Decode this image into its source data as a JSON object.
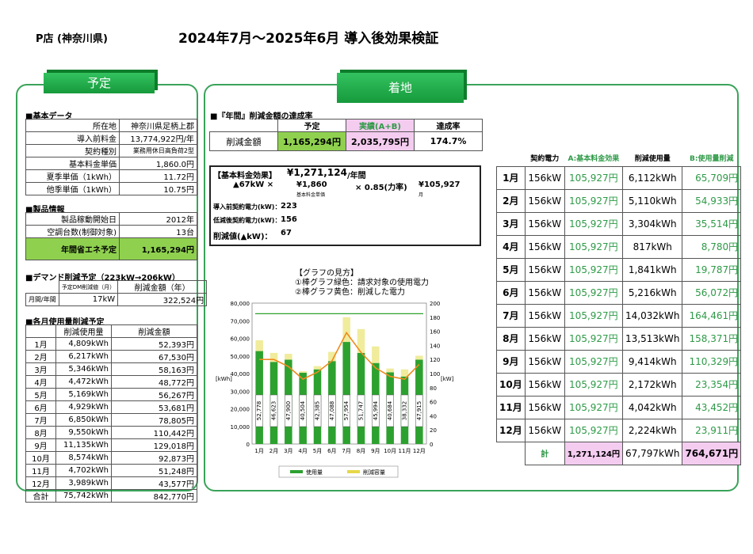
{
  "header": {
    "store": "P店 (神奈川県)",
    "title": "2024年7月～2025年6月 導入後効果検証"
  },
  "tabs": {
    "left": "予定",
    "right": "着地"
  },
  "basic": {
    "section": "■基本データ",
    "rows": [
      {
        "label": "所在地",
        "value": "神奈川県足柄上郡"
      },
      {
        "label": "導入前料金",
        "value": "13,774,922円/年"
      },
      {
        "label": "契約種別",
        "value": "業務用休日高負荷2型"
      },
      {
        "label": "基本料金単価",
        "value": "1,860.0円"
      },
      {
        "label": "夏季単価（1kWh）",
        "value": "11.72円"
      },
      {
        "label": "他季単価（1kWh）",
        "value": "10.75円"
      }
    ]
  },
  "product": {
    "section": "■製品情報",
    "rows": [
      {
        "label": "製品稼動開始日",
        "value": "2012年"
      },
      {
        "label": "空調台数(制御対象)",
        "value": "13台"
      }
    ],
    "total_label": "年間省エネ予定",
    "total_value": "1,165,294円"
  },
  "demand": {
    "section": "■デマンド削減予定（223kW→206kW）",
    "head1": "予定DM削減値（月）",
    "head2": "削減金額（年）",
    "row_label": "月間/年間",
    "kw": "17kW",
    "amount": "322,524円"
  },
  "monthly_plan": {
    "section": "■各月使用量削減予定",
    "head_usage": "削減使用量",
    "head_amount": "削減金額",
    "rows": [
      {
        "m": "1月",
        "u": "4,809kWh",
        "a": "52,393円"
      },
      {
        "m": "2月",
        "u": "6,217kWh",
        "a": "67,530円"
      },
      {
        "m": "3月",
        "u": "5,346kWh",
        "a": "58,163円"
      },
      {
        "m": "4月",
        "u": "4,472kWh",
        "a": "48,772円"
      },
      {
        "m": "5月",
        "u": "5,169kWh",
        "a": "56,267円"
      },
      {
        "m": "6月",
        "u": "4,929kWh",
        "a": "53,681円"
      },
      {
        "m": "7月",
        "u": "6,850kWh",
        "a": "78,805円"
      },
      {
        "m": "8月",
        "u": "9,550kWh",
        "a": "110,442円"
      },
      {
        "m": "9月",
        "u": "11,135kWh",
        "a": "129,018円"
      },
      {
        "m": "10月",
        "u": "8,574kWh",
        "a": "92,873円"
      },
      {
        "m": "11月",
        "u": "4,702kWh",
        "a": "51,248円"
      },
      {
        "m": "12月",
        "u": "3,989kWh",
        "a": "43,577円"
      }
    ],
    "total_label": "合計",
    "total_u": "75,742kWh",
    "total_a": "842,770円"
  },
  "achievement": {
    "section": "■『年間』削減金額の達成率",
    "head_plan": "予定",
    "head_actual": "実績(A+B)",
    "head_rate": "達成率",
    "row_label": "削減金額",
    "plan": "1,165,294円",
    "actual": "2,035,795円",
    "rate": "174.7%"
  },
  "effect": {
    "title": "【基本料金効果】",
    "total": "¥1,271,124",
    "per_year": "/年間",
    "calc_kw": "▲67kW ×",
    "calc_unit": "¥1,860",
    "calc_unit_sub": "基本料金単価",
    "calc_pf": "× 0.85(力率)",
    "calc_month": "¥105,927",
    "calc_month_sub": "月",
    "before_label": "導入前契約電力(kW)：",
    "before": "223",
    "after_label": "低減後契約電力(kW)：",
    "after": "156",
    "reduce_label": "削減値(▲kW)：",
    "reduce": "67"
  },
  "legend_note": {
    "title": "【グラフの見方】",
    "line1": "①棒グラフ緑色：請求対象の使用電力",
    "line2": "②棒グラフ黄色：削減した電力"
  },
  "monthly_actual": {
    "heads": {
      "contract": "契約電力",
      "a": "A:基本料金効果",
      "usage": "削減使用量",
      "b": "B:使用量削減"
    },
    "rows": [
      {
        "m": "1月",
        "kw": "156kW",
        "a": "105,927円",
        "u": "6,112kWh",
        "b": "65,709円"
      },
      {
        "m": "2月",
        "kw": "156kW",
        "a": "105,927円",
        "u": "5,110kWh",
        "b": "54,933円"
      },
      {
        "m": "3月",
        "kw": "156kW",
        "a": "105,927円",
        "u": "3,304kWh",
        "b": "35,514円"
      },
      {
        "m": "4月",
        "kw": "156kW",
        "a": "105,927円",
        "u": "817kWh",
        "b": "8,780円"
      },
      {
        "m": "5月",
        "kw": "156kW",
        "a": "105,927円",
        "u": "1,841kWh",
        "b": "19,787円"
      },
      {
        "m": "6月",
        "kw": "156kW",
        "a": "105,927円",
        "u": "5,216kWh",
        "b": "56,072円"
      },
      {
        "m": "7月",
        "kw": "156kW",
        "a": "105,927円",
        "u": "14,032kWh",
        "b": "164,461円"
      },
      {
        "m": "8月",
        "kw": "156kW",
        "a": "105,927円",
        "u": "13,513kWh",
        "b": "158,371円"
      },
      {
        "m": "9月",
        "kw": "156kW",
        "a": "105,927円",
        "u": "9,414kWh",
        "b": "110,329円"
      },
      {
        "m": "10月",
        "kw": "156kW",
        "a": "105,927円",
        "u": "2,172kWh",
        "b": "23,354円"
      },
      {
        "m": "11月",
        "kw": "156kW",
        "a": "105,927円",
        "u": "4,042kWh",
        "b": "43,452円"
      },
      {
        "m": "12月",
        "kw": "156kW",
        "a": "105,927円",
        "u": "2,224kWh",
        "b": "23,911円"
      }
    ],
    "total_label": "計",
    "total_a": "1,271,124円",
    "total_u": "67,797kWh",
    "total_b": "764,671円"
  },
  "chart_data": {
    "type": "bar",
    "categories": [
      "1月",
      "2月",
      "3月",
      "4月",
      "5月",
      "6月",
      "7月",
      "8月",
      "9月",
      "10月",
      "11月",
      "12月"
    ],
    "series": [
      {
        "name": "使用量",
        "values": [
          52778,
          46623,
          47900,
          40504,
          42385,
          47088,
          57954,
          51747,
          45994,
          40684,
          38332,
          47915
        ],
        "color": "#2da12f"
      },
      {
        "name": "削減容量",
        "values": [
          6112,
          5110,
          3304,
          817,
          1841,
          5216,
          14032,
          13513,
          9414,
          2172,
          4042,
          2224
        ],
        "color": "#f0ec9c"
      }
    ],
    "line_kw": [
      120,
      120,
      110,
      92,
      102,
      118,
      158,
      130,
      108,
      96,
      92,
      113
    ],
    "ref_kw": 185,
    "ylim": [
      0,
      80000
    ],
    "y2lim": [
      0,
      200
    ],
    "yticks": [
      "0",
      "10,000",
      "20,000",
      "30,000",
      "40,000",
      "50,000",
      "60,000",
      "70,000",
      "80,000"
    ],
    "y2ticks": [
      "0",
      "20",
      "40",
      "60",
      "80",
      "100",
      "120",
      "140",
      "160",
      "180",
      "200"
    ],
    "ylabel": "[kWh]",
    "y2label": "[kW]",
    "bar_labels": [
      "52,778",
      "46,623",
      "47,900",
      "40,504",
      "42,385",
      "47,088",
      "57,954",
      "51,747",
      "45,994",
      "40,684",
      "38,332",
      "47,915"
    ]
  }
}
